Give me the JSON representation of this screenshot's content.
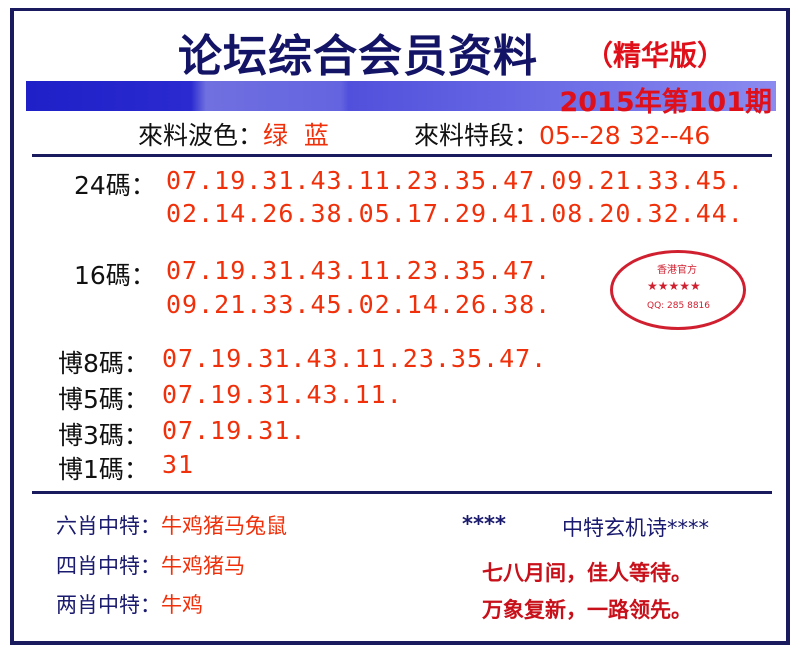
{
  "title": "论坛综合会员资料",
  "edition": "（精华版）",
  "issue": "2015年第101期",
  "wave": {
    "label": "來料波色：",
    "values": "绿  蓝"
  },
  "segment": {
    "label": "來料特段：",
    "values": "05--28 32--46"
  },
  "stamp": {
    "text": "香港官方",
    "stars": "★★★★★",
    "qq": "QQ: 285 8816"
  },
  "picks": [
    {
      "label": "24碼：",
      "lines": [
        "07.19.31.43.11.23.35.47.09.21.33.45.",
        "02.14.26.38.05.17.29.41.08.20.32.44."
      ]
    },
    {
      "label": "16碼：",
      "lines": [
        "07.19.31.43.11.23.35.47.",
        "09.21.33.45.02.14.26.38."
      ]
    },
    {
      "label": "博8碼：",
      "lines": [
        "07.19.31.43.11.23.35.47."
      ]
    },
    {
      "label": "博5碼：",
      "lines": [
        "07.19.31.43.11."
      ]
    },
    {
      "label": "博3碼：",
      "lines": [
        "07.19.31."
      ]
    },
    {
      "label": "博1碼：",
      "lines": [
        "31"
      ]
    }
  ],
  "zodiac": [
    {
      "label": "六肖中特：",
      "value": "牛鸡猪马兔鼠"
    },
    {
      "label": "四肖中特：",
      "value": "牛鸡猪马"
    },
    {
      "label": "两肖中特：",
      "value": "牛鸡"
    }
  ],
  "poem": {
    "heading_left": "****",
    "heading": "中特玄机诗****",
    "lines": [
      "七八月间，佳人等待。",
      "万象复新，一路领先。"
    ]
  },
  "colors": {
    "navy": "#1a1a5e",
    "red": "#f0300a",
    "bar": "#2020c8"
  }
}
